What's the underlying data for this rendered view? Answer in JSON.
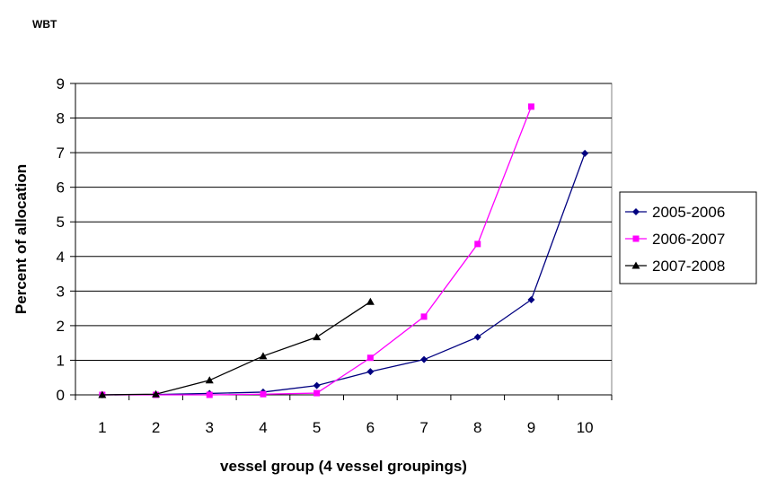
{
  "header": {
    "corner_title": "WBT"
  },
  "chart_data": {
    "type": "line",
    "title": "",
    "xlabel": "vessel group (4 vessel groupings)",
    "ylabel": "Percent of allocation",
    "x": [
      1,
      2,
      3,
      4,
      5,
      6,
      7,
      8,
      9,
      10
    ],
    "x_tick_labels": [
      "1",
      "2",
      "3",
      "4",
      "5",
      "6",
      "7",
      "8",
      "9",
      "10"
    ],
    "y_tick_labels": [
      "0",
      "1",
      "2",
      "3",
      "4",
      "5",
      "6",
      "7",
      "8",
      "9"
    ],
    "ylim": [
      0,
      9
    ],
    "grid": "horizontal",
    "legend_position": "right",
    "series": [
      {
        "name": "2005-2006",
        "color": "#000080",
        "marker": "diamond",
        "values": [
          0,
          0.01,
          0.04,
          0.08,
          0.27,
          0.67,
          1.02,
          1.67,
          2.75,
          6.98
        ]
      },
      {
        "name": "2006-2007",
        "color": "#ff00ff",
        "marker": "square",
        "values": [
          0,
          0,
          0,
          0.02,
          0.05,
          1.07,
          2.26,
          4.36,
          8.33,
          null
        ]
      },
      {
        "name": "2007-2008",
        "color": "#000000",
        "marker": "triangle",
        "values": [
          0,
          0.02,
          0.42,
          1.12,
          1.67,
          2.69,
          null,
          null,
          null,
          null
        ]
      }
    ]
  }
}
